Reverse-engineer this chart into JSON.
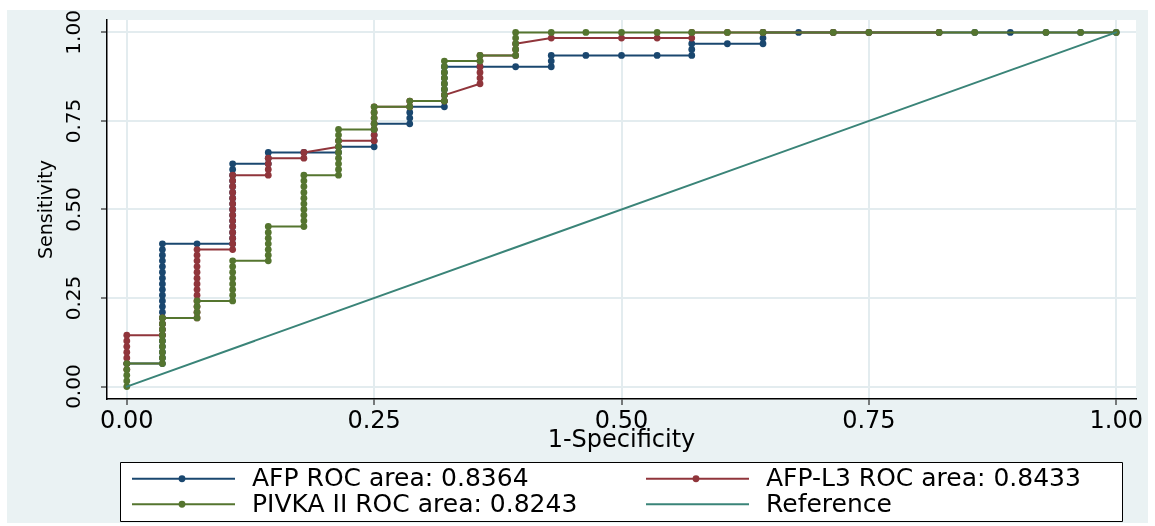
{
  "chart_data": {
    "type": "line",
    "xlabel": "1-Specificity",
    "ylabel": "Sensitivity",
    "xlim": [
      -0.02,
      1.02
    ],
    "ylim": [
      -0.035,
      1.035
    ],
    "xticks": [
      {
        "value": 0,
        "label": "0.00"
      },
      {
        "value": 0.25,
        "label": "0.25"
      },
      {
        "value": 0.5,
        "label": "0.50"
      },
      {
        "value": 0.75,
        "label": "0.75"
      },
      {
        "value": 1,
        "label": "1.00"
      }
    ],
    "yticks": [
      {
        "value": 0,
        "label": "0.00"
      },
      {
        "value": 0.25,
        "label": "0.25"
      },
      {
        "value": 0.5,
        "label": "0.50"
      },
      {
        "value": 0.75,
        "label": "0.75"
      },
      {
        "value": 1,
        "label": "1.00"
      }
    ],
    "grid": true,
    "legend": "bottom",
    "marker": "circle",
    "series": [
      {
        "name": "AFP ROC area: 0.8364",
        "color": "#1a476f",
        "x": [
          0,
          0.036,
          0.036,
          0.036,
          0.036,
          0.036,
          0.036,
          0.036,
          0.036,
          0.036,
          0.036,
          0.036,
          0.036,
          0.036,
          0.036,
          0.036,
          0.036,
          0.036,
          0.036,
          0.036,
          0.036,
          0.036,
          0.036,
          0.071,
          0.107,
          0.107,
          0.107,
          0.107,
          0.107,
          0.107,
          0.107,
          0.107,
          0.107,
          0.107,
          0.107,
          0.107,
          0.107,
          0.107,
          0.107,
          0.143,
          0.143,
          0.143,
          0.179,
          0.214,
          0.214,
          0.25,
          0.25,
          0.25,
          0.25,
          0.25,
          0.286,
          0.286,
          0.286,
          0.286,
          0.321,
          0.321,
          0.321,
          0.321,
          0.321,
          0.321,
          0.321,
          0.321,
          0.357,
          0.393,
          0.429,
          0.429,
          0.429,
          0.464,
          0.5,
          0.536,
          0.571,
          0.571,
          0.571,
          0.607,
          0.643,
          0.643,
          0.643,
          0.679,
          0.714,
          0.75,
          0.821,
          0.857,
          0.893,
          0.929,
          0.964,
          1
        ],
        "values": [
          0.065,
          0.065,
          0.081,
          0.097,
          0.113,
          0.129,
          0.145,
          0.161,
          0.177,
          0.194,
          0.21,
          0.226,
          0.242,
          0.258,
          0.274,
          0.29,
          0.306,
          0.323,
          0.339,
          0.355,
          0.371,
          0.387,
          0.403,
          0.403,
          0.403,
          0.419,
          0.435,
          0.452,
          0.468,
          0.484,
          0.5,
          0.516,
          0.532,
          0.548,
          0.565,
          0.581,
          0.597,
          0.613,
          0.629,
          0.629,
          0.645,
          0.661,
          0.661,
          0.661,
          0.677,
          0.677,
          0.694,
          0.71,
          0.726,
          0.742,
          0.742,
          0.758,
          0.774,
          0.79,
          0.79,
          0.806,
          0.823,
          0.839,
          0.855,
          0.871,
          0.887,
          0.903,
          0.903,
          0.903,
          0.903,
          0.919,
          0.935,
          0.935,
          0.935,
          0.935,
          0.935,
          0.952,
          0.968,
          0.968,
          0.968,
          0.984,
          1,
          1,
          1,
          1,
          1,
          1,
          1,
          1,
          1,
          1
        ]
      },
      {
        "name": "AFP-L3 ROC area: 0.8433",
        "color": "#90353b",
        "x": [
          0,
          0,
          0,
          0,
          0,
          0,
          0,
          0.036,
          0.036,
          0.036,
          0.036,
          0.071,
          0.071,
          0.071,
          0.071,
          0.071,
          0.071,
          0.071,
          0.071,
          0.071,
          0.071,
          0.071,
          0.071,
          0.071,
          0.107,
          0.107,
          0.107,
          0.107,
          0.107,
          0.107,
          0.107,
          0.107,
          0.107,
          0.107,
          0.107,
          0.107,
          0.107,
          0.107,
          0.143,
          0.143,
          0.143,
          0.143,
          0.179,
          0.179,
          0.214,
          0.214,
          0.25,
          0.25,
          0.25,
          0.25,
          0.25,
          0.25,
          0.25,
          0.286,
          0.286,
          0.321,
          0.321,
          0.357,
          0.357,
          0.357,
          0.357,
          0.357,
          0.357,
          0.393,
          0.393,
          0.393,
          0.429,
          0.5,
          0.536,
          0.571,
          0.571,
          0.607,
          0.643,
          0.714,
          0.75,
          0.821
        ],
        "values": [
          0.048,
          0.065,
          0.081,
          0.097,
          0.113,
          0.129,
          0.145,
          0.145,
          0.161,
          0.177,
          0.194,
          0.194,
          0.21,
          0.226,
          0.242,
          0.258,
          0.274,
          0.29,
          0.306,
          0.323,
          0.339,
          0.355,
          0.371,
          0.387,
          0.387,
          0.403,
          0.419,
          0.435,
          0.452,
          0.468,
          0.484,
          0.5,
          0.516,
          0.532,
          0.548,
          0.565,
          0.581,
          0.597,
          0.597,
          0.613,
          0.629,
          0.645,
          0.645,
          0.661,
          0.677,
          0.694,
          0.694,
          0.71,
          0.726,
          0.742,
          0.758,
          0.774,
          0.79,
          0.79,
          0.806,
          0.806,
          0.823,
          0.855,
          0.871,
          0.887,
          0.903,
          0.919,
          0.935,
          0.935,
          0.952,
          0.968,
          0.984,
          0.984,
          0.984,
          0.984,
          1,
          1,
          1,
          1,
          1,
          1
        ]
      },
      {
        "name": "PIVKA II ROC area: 0.8243",
        "color": "#55752f",
        "x": [
          0,
          0,
          0,
          0,
          0,
          0.036,
          0.036,
          0.036,
          0.036,
          0.036,
          0.036,
          0.036,
          0.036,
          0.036,
          0.071,
          0.071,
          0.071,
          0.071,
          0.107,
          0.107,
          0.107,
          0.107,
          0.107,
          0.107,
          0.107,
          0.107,
          0.143,
          0.143,
          0.143,
          0.143,
          0.143,
          0.143,
          0.143,
          0.179,
          0.179,
          0.179,
          0.179,
          0.179,
          0.179,
          0.179,
          0.179,
          0.179,
          0.179,
          0.214,
          0.214,
          0.214,
          0.214,
          0.214,
          0.214,
          0.214,
          0.214,
          0.214,
          0.25,
          0.25,
          0.25,
          0.25,
          0.25,
          0.286,
          0.286,
          0.321,
          0.321,
          0.321,
          0.321,
          0.321,
          0.321,
          0.321,
          0.321,
          0.357,
          0.357,
          0.393,
          0.393,
          0.393,
          0.393,
          0.393,
          0.429,
          0.464,
          0.5,
          0.536,
          0.571,
          0.607,
          0.643,
          0.714,
          0.75,
          0.821,
          0.857,
          0.929,
          0.964,
          1
        ],
        "values": [
          0,
          0.016,
          0.032,
          0.048,
          0.065,
          0.065,
          0.081,
          0.097,
          0.113,
          0.129,
          0.145,
          0.161,
          0.177,
          0.194,
          0.194,
          0.21,
          0.226,
          0.242,
          0.242,
          0.258,
          0.274,
          0.29,
          0.306,
          0.323,
          0.339,
          0.355,
          0.355,
          0.371,
          0.387,
          0.403,
          0.419,
          0.435,
          0.452,
          0.452,
          0.468,
          0.484,
          0.5,
          0.516,
          0.532,
          0.548,
          0.565,
          0.581,
          0.597,
          0.597,
          0.613,
          0.629,
          0.645,
          0.661,
          0.677,
          0.694,
          0.71,
          0.726,
          0.726,
          0.742,
          0.758,
          0.774,
          0.79,
          0.79,
          0.806,
          0.806,
          0.823,
          0.839,
          0.855,
          0.871,
          0.887,
          0.903,
          0.919,
          0.919,
          0.935,
          0.935,
          0.952,
          0.968,
          0.984,
          1,
          1,
          1,
          1,
          1,
          1,
          1,
          1,
          1,
          1,
          1,
          1,
          1,
          1,
          1
        ]
      },
      {
        "name": "Reference",
        "color": "#3a8478",
        "marker": "none",
        "x": [
          0,
          1
        ],
        "values": [
          0,
          1
        ]
      }
    ]
  }
}
